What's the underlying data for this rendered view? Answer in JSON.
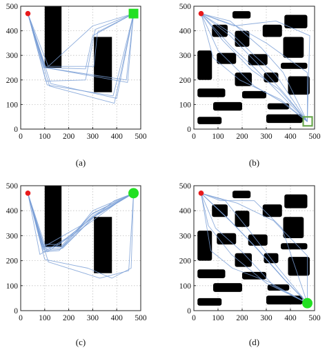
{
  "chart_data": [
    {
      "type": "scatter",
      "caption": "(a)",
      "xlim": [
        0,
        500
      ],
      "ylim": [
        0,
        500
      ],
      "xticks": [
        0,
        100,
        200,
        300,
        400,
        500
      ],
      "yticks": [
        0,
        100,
        200,
        300,
        400,
        500
      ],
      "grid": true,
      "start": {
        "x": 30,
        "y": 470,
        "color": "#e8191b"
      },
      "goal": {
        "x": 470,
        "y": 470,
        "color": "#22e022",
        "shape": "square"
      },
      "obstacles": [
        {
          "x0": 100,
          "y0": 250,
          "x1": 170,
          "y1": 500
        },
        {
          "x0": 305,
          "y0": 150,
          "x1": 380,
          "y1": 375
        }
      ],
      "paths": [
        [
          [
            30,
            470
          ],
          [
            95,
            250
          ],
          [
            270,
            245
          ],
          [
            300,
            380
          ],
          [
            470,
            470
          ]
        ],
        [
          [
            30,
            470
          ],
          [
            100,
            255
          ],
          [
            305,
            255
          ],
          [
            320,
            395
          ],
          [
            470,
            470
          ]
        ],
        [
          [
            30,
            470
          ],
          [
            105,
            195
          ],
          [
            270,
            200
          ],
          [
            310,
            405
          ],
          [
            470,
            470
          ]
        ],
        [
          [
            30,
            470
          ],
          [
            120,
            175
          ],
          [
            390,
            105
          ],
          [
            470,
            470
          ]
        ],
        [
          [
            30,
            470
          ],
          [
            125,
            185
          ],
          [
            400,
            125
          ],
          [
            470,
            470
          ]
        ],
        [
          [
            30,
            470
          ],
          [
            110,
            180
          ],
          [
            385,
            135
          ],
          [
            470,
            470
          ]
        ],
        [
          [
            30,
            470
          ],
          [
            115,
            255
          ],
          [
            300,
            420
          ],
          [
            470,
            470
          ]
        ],
        [
          [
            30,
            470
          ],
          [
            100,
            250
          ],
          [
            440,
            200
          ],
          [
            470,
            470
          ]
        ],
        [
          [
            30,
            470
          ],
          [
            105,
            250
          ],
          [
            445,
            190
          ],
          [
            470,
            470
          ]
        ]
      ]
    },
    {
      "type": "scatter",
      "caption": "(b)",
      "xlim": [
        0,
        500
      ],
      "ylim": [
        0,
        500
      ],
      "xticks": [
        0,
        100,
        200,
        300,
        400,
        500
      ],
      "yticks": [
        0,
        100,
        200,
        300,
        400,
        500
      ],
      "grid": true,
      "start": {
        "x": 30,
        "y": 470,
        "color": "#e8191b"
      },
      "goal": {
        "x": 470,
        "y": 30,
        "color": "#6aa84f",
        "shape": "hollow-square"
      },
      "obstacles": [
        {
          "x0": 160,
          "y0": 450,
          "x1": 235,
          "y1": 480
        },
        {
          "x0": 375,
          "y0": 410,
          "x1": 470,
          "y1": 465
        },
        {
          "x0": 75,
          "y0": 375,
          "x1": 140,
          "y1": 425
        },
        {
          "x0": 170,
          "y0": 335,
          "x1": 230,
          "y1": 400
        },
        {
          "x0": 285,
          "y0": 375,
          "x1": 365,
          "y1": 425
        },
        {
          "x0": 370,
          "y0": 290,
          "x1": 455,
          "y1": 375
        },
        {
          "x0": 15,
          "y0": 200,
          "x1": 75,
          "y1": 320
        },
        {
          "x0": 95,
          "y0": 265,
          "x1": 175,
          "y1": 310
        },
        {
          "x0": 225,
          "y0": 260,
          "x1": 305,
          "y1": 305
        },
        {
          "x0": 360,
          "y0": 245,
          "x1": 470,
          "y1": 270
        },
        {
          "x0": 170,
          "y0": 175,
          "x1": 240,
          "y1": 230
        },
        {
          "x0": 290,
          "y0": 190,
          "x1": 350,
          "y1": 230
        },
        {
          "x0": 390,
          "y0": 140,
          "x1": 480,
          "y1": 215
        },
        {
          "x0": 15,
          "y0": 130,
          "x1": 130,
          "y1": 165
        },
        {
          "x0": 200,
          "y0": 125,
          "x1": 300,
          "y1": 155
        },
        {
          "x0": 80,
          "y0": 75,
          "x1": 200,
          "y1": 110
        },
        {
          "x0": 305,
          "y0": 80,
          "x1": 395,
          "y1": 105
        },
        {
          "x0": 15,
          "y0": 20,
          "x1": 115,
          "y1": 50
        },
        {
          "x0": 300,
          "y0": 25,
          "x1": 450,
          "y1": 60
        }
      ],
      "paths": [
        [
          [
            30,
            470
          ],
          [
            150,
            380
          ],
          [
            260,
            270
          ],
          [
            370,
            150
          ],
          [
            470,
            30
          ]
        ],
        [
          [
            30,
            470
          ],
          [
            155,
            390
          ],
          [
            250,
            300
          ],
          [
            340,
            220
          ],
          [
            470,
            30
          ]
        ],
        [
          [
            30,
            470
          ],
          [
            160,
            330
          ],
          [
            250,
            250
          ],
          [
            380,
            120
          ],
          [
            470,
            30
          ]
        ],
        [
          [
            30,
            470
          ],
          [
            150,
            440
          ],
          [
            280,
            330
          ],
          [
            370,
            230
          ],
          [
            470,
            30
          ]
        ],
        [
          [
            30,
            470
          ],
          [
            100,
            320
          ],
          [
            250,
            175
          ],
          [
            365,
            110
          ],
          [
            470,
            30
          ]
        ],
        [
          [
            30,
            470
          ],
          [
            175,
            420
          ],
          [
            300,
            350
          ],
          [
            470,
            230
          ],
          [
            470,
            30
          ]
        ],
        [
          [
            30,
            470
          ],
          [
            165,
            420
          ],
          [
            340,
            440
          ],
          [
            480,
            380
          ],
          [
            470,
            30
          ]
        ],
        [
          [
            30,
            470
          ],
          [
            80,
            290
          ],
          [
            190,
            200
          ],
          [
            360,
            120
          ],
          [
            470,
            30
          ]
        ],
        [
          [
            30,
            470
          ],
          [
            120,
            360
          ],
          [
            240,
            240
          ],
          [
            355,
            160
          ],
          [
            470,
            30
          ]
        ]
      ]
    },
    {
      "type": "scatter",
      "caption": "(c)",
      "xlim": [
        0,
        500
      ],
      "ylim": [
        0,
        500
      ],
      "xticks": [
        0,
        100,
        200,
        300,
        400,
        500
      ],
      "yticks": [
        0,
        100,
        200,
        300,
        400,
        500
      ],
      "grid": true,
      "start": {
        "x": 30,
        "y": 470,
        "color": "#e8191b"
      },
      "goal": {
        "x": 470,
        "y": 470,
        "color": "#22e022",
        "shape": "circle"
      },
      "obstacles": [
        {
          "x0": 100,
          "y0": 255,
          "x1": 170,
          "y1": 500
        },
        {
          "x0": 305,
          "y0": 150,
          "x1": 380,
          "y1": 375
        }
      ],
      "paths": [
        [
          [
            30,
            470
          ],
          [
            90,
            255
          ],
          [
            170,
            255
          ],
          [
            300,
            380
          ],
          [
            470,
            470
          ]
        ],
        [
          [
            30,
            470
          ],
          [
            95,
            245
          ],
          [
            175,
            250
          ],
          [
            305,
            375
          ],
          [
            470,
            470
          ]
        ],
        [
          [
            30,
            470
          ],
          [
            100,
            240
          ],
          [
            165,
            245
          ],
          [
            310,
            380
          ],
          [
            470,
            470
          ]
        ],
        [
          [
            30,
            470
          ],
          [
            95,
            235
          ],
          [
            160,
            240
          ],
          [
            300,
            390
          ],
          [
            470,
            470
          ]
        ],
        [
          [
            30,
            470
          ],
          [
            100,
            250
          ],
          [
            170,
            260
          ],
          [
            295,
            385
          ],
          [
            470,
            470
          ]
        ],
        [
          [
            30,
            470
          ],
          [
            85,
            265
          ],
          [
            160,
            265
          ],
          [
            300,
            375
          ],
          [
            470,
            470
          ]
        ],
        [
          [
            30,
            470
          ],
          [
            110,
            235
          ],
          [
            220,
            305
          ],
          [
            400,
            430
          ],
          [
            470,
            470
          ]
        ],
        [
          [
            30,
            470
          ],
          [
            80,
            225
          ],
          [
            190,
            290
          ],
          [
            390,
            440
          ],
          [
            470,
            470
          ]
        ],
        [
          [
            30,
            470
          ],
          [
            100,
            205
          ],
          [
            280,
            170
          ],
          [
            380,
            130
          ],
          [
            460,
            170
          ],
          [
            470,
            470
          ]
        ],
        [
          [
            30,
            470
          ],
          [
            115,
            195
          ],
          [
            330,
            130
          ],
          [
            450,
            160
          ],
          [
            470,
            470
          ]
        ],
        [
          [
            30,
            470
          ],
          [
            95,
            255
          ],
          [
            250,
            340
          ],
          [
            300,
            400
          ],
          [
            470,
            470
          ]
        ]
      ]
    },
    {
      "type": "scatter",
      "caption": "(d)",
      "xlim": [
        0,
        500
      ],
      "ylim": [
        0,
        500
      ],
      "xticks": [
        0,
        100,
        200,
        300,
        400,
        500
      ],
      "yticks": [
        0,
        100,
        200,
        300,
        400,
        500
      ],
      "grid": true,
      "start": {
        "x": 30,
        "y": 470,
        "color": "#e8191b"
      },
      "goal": {
        "x": 470,
        "y": 30,
        "color": "#22e022",
        "shape": "circle"
      },
      "obstacles": [
        {
          "x0": 160,
          "y0": 450,
          "x1": 235,
          "y1": 480
        },
        {
          "x0": 375,
          "y0": 410,
          "x1": 470,
          "y1": 465
        },
        {
          "x0": 75,
          "y0": 375,
          "x1": 140,
          "y1": 425
        },
        {
          "x0": 170,
          "y0": 335,
          "x1": 230,
          "y1": 400
        },
        {
          "x0": 285,
          "y0": 375,
          "x1": 365,
          "y1": 425
        },
        {
          "x0": 370,
          "y0": 290,
          "x1": 455,
          "y1": 375
        },
        {
          "x0": 15,
          "y0": 200,
          "x1": 75,
          "y1": 320
        },
        {
          "x0": 95,
          "y0": 265,
          "x1": 175,
          "y1": 310
        },
        {
          "x0": 225,
          "y0": 260,
          "x1": 305,
          "y1": 305
        },
        {
          "x0": 360,
          "y0": 245,
          "x1": 470,
          "y1": 270
        },
        {
          "x0": 170,
          "y0": 175,
          "x1": 240,
          "y1": 230
        },
        {
          "x0": 290,
          "y0": 190,
          "x1": 350,
          "y1": 230
        },
        {
          "x0": 390,
          "y0": 140,
          "x1": 480,
          "y1": 215
        },
        {
          "x0": 15,
          "y0": 130,
          "x1": 130,
          "y1": 165
        },
        {
          "x0": 200,
          "y0": 125,
          "x1": 300,
          "y1": 155
        },
        {
          "x0": 80,
          "y0": 75,
          "x1": 200,
          "y1": 110
        },
        {
          "x0": 305,
          "y0": 80,
          "x1": 395,
          "y1": 105
        },
        {
          "x0": 15,
          "y0": 20,
          "x1": 115,
          "y1": 50
        },
        {
          "x0": 300,
          "y0": 25,
          "x1": 450,
          "y1": 60
        }
      ],
      "paths": [
        [
          [
            30,
            470
          ],
          [
            150,
            360
          ],
          [
            260,
            250
          ],
          [
            370,
            130
          ],
          [
            470,
            30
          ]
        ],
        [
          [
            30,
            470
          ],
          [
            140,
            370
          ],
          [
            250,
            260
          ],
          [
            360,
            140
          ],
          [
            470,
            30
          ]
        ],
        [
          [
            30,
            470
          ],
          [
            160,
            350
          ],
          [
            270,
            240
          ],
          [
            380,
            120
          ],
          [
            470,
            30
          ]
        ],
        [
          [
            30,
            470
          ],
          [
            110,
            440
          ],
          [
            250,
            440
          ],
          [
            365,
            330
          ],
          [
            470,
            30
          ]
        ],
        [
          [
            30,
            470
          ],
          [
            90,
            330
          ],
          [
            200,
            235
          ],
          [
            330,
            100
          ],
          [
            470,
            30
          ]
        ],
        [
          [
            30,
            470
          ],
          [
            70,
            240
          ],
          [
            160,
            170
          ],
          [
            310,
            115
          ],
          [
            470,
            30
          ]
        ],
        [
          [
            30,
            470
          ],
          [
            180,
            430
          ],
          [
            330,
            360
          ],
          [
            470,
            220
          ],
          [
            470,
            30
          ]
        ],
        [
          [
            30,
            470
          ],
          [
            130,
            440
          ],
          [
            230,
            320
          ],
          [
            350,
            170
          ],
          [
            470,
            30
          ]
        ],
        [
          [
            30,
            470
          ],
          [
            60,
            340
          ],
          [
            155,
            225
          ],
          [
            300,
            110
          ],
          [
            470,
            30
          ]
        ]
      ]
    }
  ]
}
